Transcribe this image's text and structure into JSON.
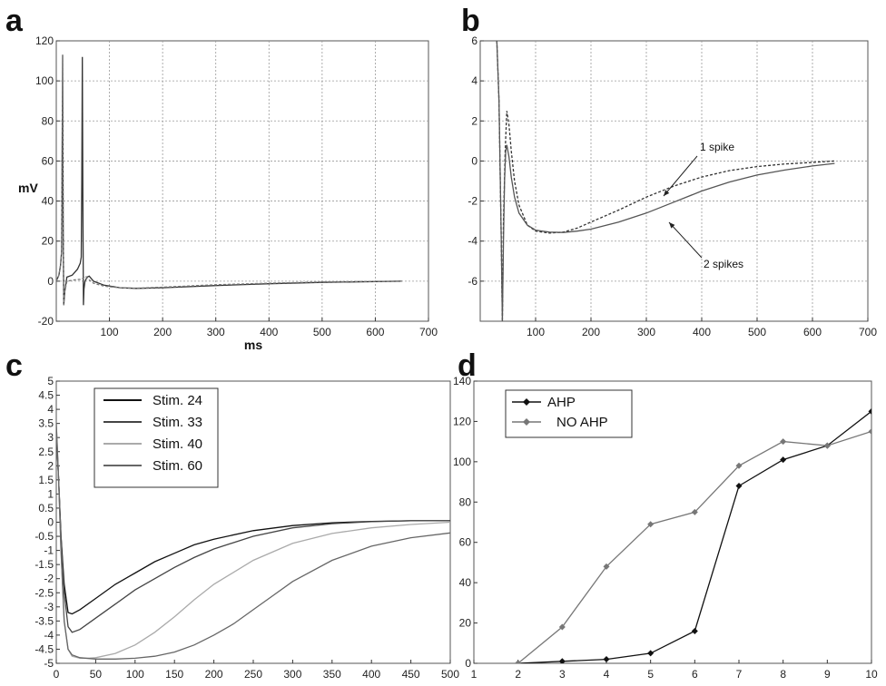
{
  "chart_data": [
    {
      "panel": "a",
      "type": "line",
      "xlabel": "ms",
      "ylabel": "mV",
      "xlim": [
        0,
        700
      ],
      "ylim": [
        -20,
        120
      ],
      "xticks": [
        100,
        200,
        300,
        400,
        500,
        600,
        700
      ],
      "yticks": [
        -20,
        0,
        20,
        40,
        60,
        80,
        100,
        120
      ],
      "grid": true,
      "colors": [
        "#333333",
        "#777777"
      ],
      "series": [
        {
          "x": [
            0,
            5,
            8,
            10,
            11,
            12,
            13,
            14,
            16,
            20,
            30,
            40,
            45,
            47,
            48,
            49,
            50,
            51,
            52,
            54,
            58,
            62,
            70,
            90,
            120,
            150,
            200,
            300,
            400,
            500,
            600,
            650
          ],
          "y": [
            0,
            3,
            8,
            15,
            60,
            113,
            30,
            -12,
            -5,
            2,
            3,
            6,
            9,
            12,
            50,
            112,
            40,
            -12,
            -4,
            0,
            2,
            2.5,
            0,
            -2,
            -3.3,
            -3.6,
            -3.3,
            -2.2,
            -1.3,
            -0.6,
            -0.2,
            0
          ]
        },
        {
          "x": [
            0,
            5,
            8,
            10,
            11,
            12,
            13,
            14,
            16,
            20,
            30,
            40,
            45,
            50,
            55,
            60,
            70,
            90,
            120,
            150,
            200,
            300,
            400,
            500,
            600,
            650
          ],
          "y": [
            0,
            3,
            8,
            15,
            60,
            113,
            30,
            -12,
            -5,
            0,
            0.5,
            0.8,
            0.9,
            1.5,
            2.5,
            1,
            -1,
            -2.5,
            -3.3,
            -3.5,
            -3,
            -1.8,
            -1,
            -0.4,
            -0.1,
            0
          ]
        }
      ]
    },
    {
      "panel": "b",
      "type": "line",
      "xlim": [
        0,
        700
      ],
      "ylim": [
        -8,
        6
      ],
      "xticks": [
        100,
        200,
        300,
        400,
        500,
        600,
        700
      ],
      "yticks": [
        -6,
        -4,
        -2,
        0,
        2,
        4,
        6
      ],
      "grid": true,
      "annotations": [
        "1 spike",
        "2 spikes"
      ],
      "colors": [
        "#333333",
        "#555555"
      ],
      "series": [
        {
          "x": [
            30,
            34,
            38,
            40,
            42,
            45,
            48,
            52,
            56,
            62,
            70,
            85,
            100,
            125,
            150,
            175,
            200,
            250,
            300,
            350,
            400,
            450,
            500,
            550,
            600,
            640
          ],
          "y": [
            6,
            3,
            -4,
            -8,
            -3,
            0.5,
            2.5,
            1.8,
            0.5,
            -1.0,
            -2.2,
            -3.2,
            -3.5,
            -3.6,
            -3.55,
            -3.35,
            -3.05,
            -2.45,
            -1.8,
            -1.25,
            -0.8,
            -0.48,
            -0.28,
            -0.15,
            -0.07,
            0
          ]
        },
        {
          "x": [
            30,
            34,
            38,
            40,
            42,
            44,
            46,
            48,
            52,
            56,
            62,
            70,
            85,
            100,
            125,
            150,
            175,
            200,
            250,
            300,
            350,
            400,
            450,
            500,
            550,
            600,
            640
          ],
          "y": [
            6,
            3,
            -4,
            -8,
            -4,
            -1,
            0.5,
            0.8,
            0.2,
            -0.8,
            -1.8,
            -2.6,
            -3.2,
            -3.45,
            -3.55,
            -3.57,
            -3.5,
            -3.4,
            -3.05,
            -2.6,
            -2.05,
            -1.5,
            -1.05,
            -0.7,
            -0.45,
            -0.25,
            -0.12
          ]
        }
      ]
    },
    {
      "panel": "c",
      "type": "line",
      "xlim": [
        0,
        500
      ],
      "ylim": [
        -5,
        5
      ],
      "xticks": [
        0,
        50,
        100,
        150,
        200,
        250,
        300,
        350,
        400,
        450,
        500
      ],
      "yticks": [
        -5,
        -4.5,
        -4,
        -3.5,
        -3,
        -2.5,
        -2,
        -1.5,
        -1,
        -0.5,
        0,
        0.5,
        1,
        1.5,
        2,
        2.5,
        3,
        3.5,
        4,
        4.5,
        5
      ],
      "grid": false,
      "legend_position": "top-left",
      "series": [
        {
          "name": "Stim. 24",
          "color": "#111111",
          "x": [
            0,
            3,
            6,
            10,
            15,
            20,
            30,
            50,
            75,
            100,
            125,
            150,
            175,
            200,
            250,
            300,
            350,
            400,
            450,
            500
          ],
          "y": [
            3.2,
            1.5,
            -0.5,
            -2.2,
            -3.2,
            -3.25,
            -3.1,
            -2.7,
            -2.2,
            -1.8,
            -1.4,
            -1.1,
            -0.8,
            -0.6,
            -0.3,
            -0.12,
            -0.02,
            0.03,
            0.05,
            0.05
          ]
        },
        {
          "name": "Stim. 33",
          "color": "#444444",
          "x": [
            0,
            3,
            6,
            10,
            15,
            20,
            30,
            50,
            75,
            100,
            125,
            150,
            175,
            200,
            250,
            300,
            350,
            400,
            450,
            500
          ],
          "y": [
            3.3,
            1.5,
            -0.5,
            -2.5,
            -3.7,
            -3.9,
            -3.8,
            -3.4,
            -2.9,
            -2.4,
            -2.0,
            -1.6,
            -1.25,
            -0.95,
            -0.5,
            -0.2,
            -0.05,
            0.02,
            0.05,
            0.05
          ]
        },
        {
          "name": "Stim. 40",
          "color": "#aaaaaa",
          "x": [
            0,
            3,
            6,
            10,
            15,
            20,
            30,
            40,
            50,
            75,
            100,
            125,
            150,
            175,
            200,
            250,
            300,
            350,
            400,
            450,
            500
          ],
          "y": [
            3.5,
            1.5,
            -1.0,
            -3.5,
            -4.5,
            -4.75,
            -4.82,
            -4.82,
            -4.8,
            -4.65,
            -4.35,
            -3.9,
            -3.35,
            -2.75,
            -2.2,
            -1.35,
            -0.75,
            -0.4,
            -0.2,
            -0.08,
            0
          ]
        },
        {
          "name": "Stim. 60",
          "color": "#666666",
          "x": [
            0,
            3,
            6,
            10,
            15,
            20,
            30,
            50,
            75,
            100,
            125,
            150,
            175,
            200,
            225,
            250,
            275,
            300,
            350,
            400,
            450,
            500
          ],
          "y": [
            3.5,
            1.5,
            -1.0,
            -3.5,
            -4.5,
            -4.7,
            -4.8,
            -4.85,
            -4.85,
            -4.82,
            -4.75,
            -4.6,
            -4.35,
            -4.0,
            -3.6,
            -3.1,
            -2.6,
            -2.1,
            -1.35,
            -0.85,
            -0.55,
            -0.38
          ]
        }
      ]
    },
    {
      "panel": "d",
      "type": "line",
      "xlim": [
        1,
        10
      ],
      "ylim": [
        0,
        140
      ],
      "xticks": [
        1,
        2,
        3,
        4,
        5,
        6,
        7,
        8,
        9,
        10
      ],
      "yticks": [
        0,
        20,
        40,
        60,
        80,
        100,
        120,
        140
      ],
      "grid": false,
      "legend_position": "top-left",
      "series": [
        {
          "name": "AHP",
          "color": "#111111",
          "x": [
            2,
            3,
            4,
            5,
            6,
            7,
            8,
            9,
            10
          ],
          "y": [
            0,
            1,
            2,
            5,
            16,
            88,
            101,
            108,
            125
          ]
        },
        {
          "name": "NO AHP",
          "color": "#777777",
          "x": [
            2,
            3,
            4,
            5,
            6,
            7,
            8,
            9,
            10
          ],
          "y": [
            0,
            18,
            48,
            69,
            75,
            98,
            110,
            108,
            115
          ]
        }
      ]
    }
  ]
}
